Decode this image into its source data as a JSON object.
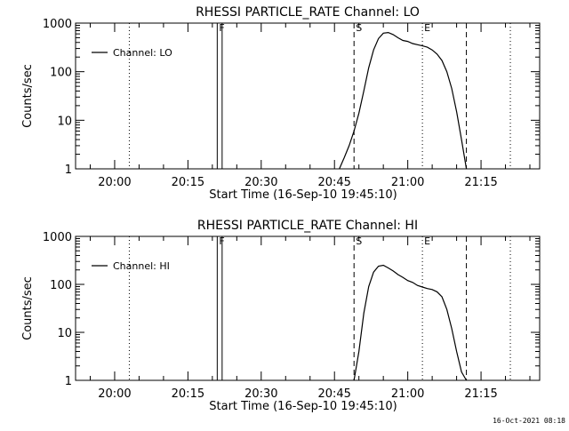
{
  "chart_data": [
    {
      "type": "line",
      "title": "RHESSI PARTICLE_RATE Channel: LO",
      "xlabel": "Start Time (16-Sep-10 19:45:10)",
      "ylabel": "Counts/sec",
      "yscale": "log",
      "ylim": [
        1,
        1000
      ],
      "xlim": [
        "19:52",
        "21:27"
      ],
      "x_ticks": [
        "20:00",
        "20:15",
        "20:30",
        "20:45",
        "21:00",
        "21:15"
      ],
      "y_ticks": [
        "1",
        "10",
        "100",
        "1000"
      ],
      "legend": {
        "placement": "top-left",
        "entries": [
          "Channel: LO"
        ]
      },
      "grid": false,
      "markers": [
        {
          "time": "20:03",
          "style": "dotted",
          "label": ""
        },
        {
          "time": "20:21",
          "style": "solid",
          "label": "F"
        },
        {
          "time": "20:22",
          "style": "solid",
          "label": ""
        },
        {
          "time": "20:49",
          "style": "dashed",
          "label": "S"
        },
        {
          "time": "21:03",
          "style": "dotted",
          "label": "E"
        },
        {
          "time": "21:12",
          "style": "dashed",
          "label": ""
        },
        {
          "time": "21:21",
          "style": "dotted",
          "label": ""
        }
      ],
      "series": [
        {
          "name": "Channel: LO",
          "x": [
            "20:46",
            "20:47",
            "20:48",
            "20:49",
            "20:50",
            "20:51",
            "20:52",
            "20:53",
            "20:54",
            "20:55",
            "20:56",
            "20:57",
            "20:58",
            "20:59",
            "21:00",
            "21:01",
            "21:02",
            "21:03",
            "21:04",
            "21:05",
            "21:06",
            "21:07",
            "21:08",
            "21:09",
            "21:10",
            "21:11",
            "21:12"
          ],
          "y": [
            1,
            1.7,
            3,
            6,
            14,
            40,
            120,
            280,
            480,
            620,
            640,
            580,
            500,
            440,
            420,
            380,
            360,
            340,
            320,
            280,
            230,
            170,
            100,
            45,
            15,
            4,
            1
          ]
        }
      ]
    },
    {
      "type": "line",
      "title": "RHESSI PARTICLE_RATE Channel: HI",
      "xlabel": "Start Time (16-Sep-10 19:45:10)",
      "ylabel": "Counts/sec",
      "yscale": "log",
      "ylim": [
        1,
        1000
      ],
      "xlim": [
        "19:52",
        "21:27"
      ],
      "x_ticks": [
        "20:00",
        "20:15",
        "20:30",
        "20:45",
        "21:00",
        "21:15"
      ],
      "y_ticks": [
        "1",
        "10",
        "100",
        "1000"
      ],
      "legend": {
        "placement": "top-left",
        "entries": [
          "Channel: HI"
        ]
      },
      "grid": false,
      "markers": [
        {
          "time": "20:03",
          "style": "dotted",
          "label": ""
        },
        {
          "time": "20:21",
          "style": "solid",
          "label": "F"
        },
        {
          "time": "20:22",
          "style": "solid",
          "label": ""
        },
        {
          "time": "20:49",
          "style": "dashed",
          "label": "S"
        },
        {
          "time": "21:03",
          "style": "dotted",
          "label": "E"
        },
        {
          "time": "21:12",
          "style": "dashed",
          "label": ""
        },
        {
          "time": "21:21",
          "style": "dotted",
          "label": ""
        }
      ],
      "series": [
        {
          "name": "Channel: HI",
          "x": [
            "20:49",
            "20:50",
            "20:51",
            "20:52",
            "20:53",
            "20:54",
            "20:55",
            "20:56",
            "20:57",
            "20:58",
            "20:59",
            "21:00",
            "21:01",
            "21:02",
            "21:03",
            "21:04",
            "21:05",
            "21:06",
            "21:07",
            "21:08",
            "21:09",
            "21:10",
            "21:11",
            "21:12"
          ],
          "y": [
            1,
            4,
            25,
            90,
            180,
            240,
            250,
            220,
            190,
            160,
            140,
            120,
            110,
            95,
            88,
            82,
            78,
            70,
            55,
            30,
            12,
            4,
            1.5,
            1
          ]
        }
      ]
    }
  ],
  "footer": {
    "timestamp": "16-Oct-2021 08:18"
  }
}
